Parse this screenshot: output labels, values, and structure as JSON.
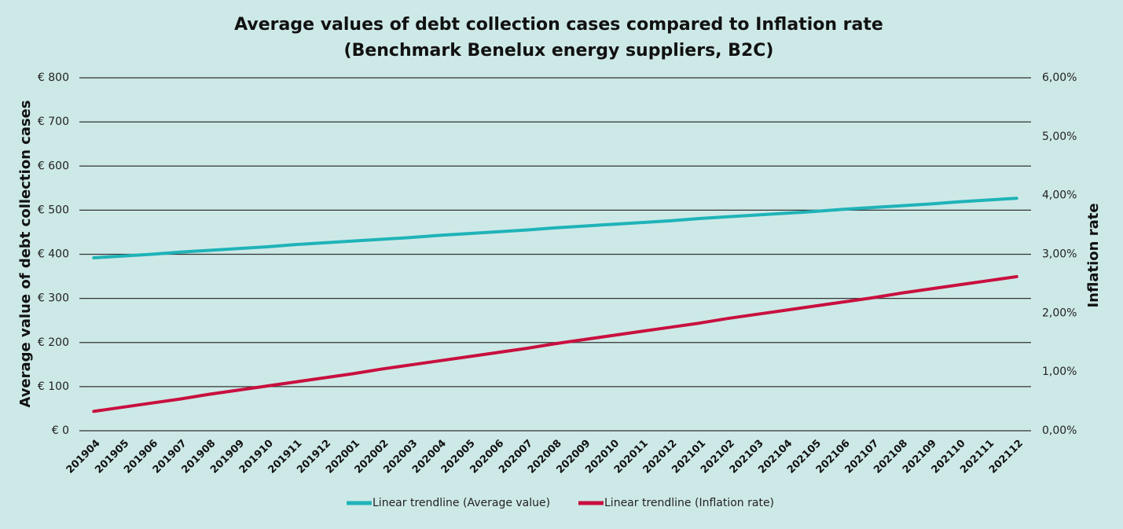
{
  "chart_data": {
    "type": "line",
    "title": "Average values of debt collection cases compared to Inflation rate",
    "subtitle": "(Benchmark Benelux energy suppliers, B2C)",
    "y_label": "Average value of debt collection cases",
    "y2_label": "Inflation rate",
    "categories": [
      "201904",
      "201905",
      "201906",
      "201907",
      "201908",
      "201909",
      "201910",
      "201911",
      "201912",
      "202001",
      "202002",
      "202003",
      "202004",
      "202005",
      "202006",
      "202007",
      "202008",
      "202009",
      "202010",
      "202011",
      "202012",
      "202101",
      "202102",
      "202103",
      "202104",
      "202105",
      "202106",
      "202107",
      "202108",
      "202109",
      "202110",
      "202111",
      "202112"
    ],
    "ylim": [
      0,
      800
    ],
    "yticks": [
      {
        "value": 0,
        "label": "€ 0"
      },
      {
        "value": 100,
        "label": "€ 100"
      },
      {
        "value": 200,
        "label": "€ 200"
      },
      {
        "value": 300,
        "label": "€ 300"
      },
      {
        "value": 400,
        "label": "€ 400"
      },
      {
        "value": 500,
        "label": "€ 500"
      },
      {
        "value": 600,
        "label": "€ 600"
      },
      {
        "value": 700,
        "label": "€ 700"
      },
      {
        "value": 800,
        "label": "€ 800"
      }
    ],
    "y2lim": [
      0,
      6
    ],
    "y2ticks": [
      {
        "value": 0,
        "label": "0,00%"
      },
      {
        "value": 1,
        "label": "1,00%"
      },
      {
        "value": 2,
        "label": "2,00%"
      },
      {
        "value": 3,
        "label": "3,00%"
      },
      {
        "value": 4,
        "label": "4,00%"
      },
      {
        "value": 5,
        "label": "5,00%"
      },
      {
        "value": 6,
        "label": "6,00%"
      }
    ],
    "grid": true,
    "legend": "bottom",
    "series": [
      {
        "name": "Linear trendline (Average value)",
        "color": "#1fb3b8",
        "values": [
          392,
          396,
          400,
          405,
          409,
          413,
          417,
          422,
          426,
          430,
          434,
          438,
          443,
          447,
          451,
          455,
          460,
          464,
          468,
          472,
          476,
          481,
          485,
          489,
          493,
          497,
          502,
          506,
          510,
          514,
          519,
          523,
          527
        ]
      },
      {
        "name": "Linear trendline (Inflation rate)",
        "color": "#c8103f",
        "axis": "y2",
        "values": [
          0.33,
          0.4,
          0.47,
          0.54,
          0.62,
          0.69,
          0.76,
          0.83,
          0.9,
          0.97,
          1.05,
          1.12,
          1.19,
          1.26,
          1.33,
          1.4,
          1.48,
          1.55,
          1.62,
          1.69,
          1.76,
          1.83,
          1.91,
          1.98,
          2.05,
          2.12,
          2.19,
          2.26,
          2.34,
          2.41,
          2.48,
          2.55,
          2.62
        ]
      }
    ]
  }
}
